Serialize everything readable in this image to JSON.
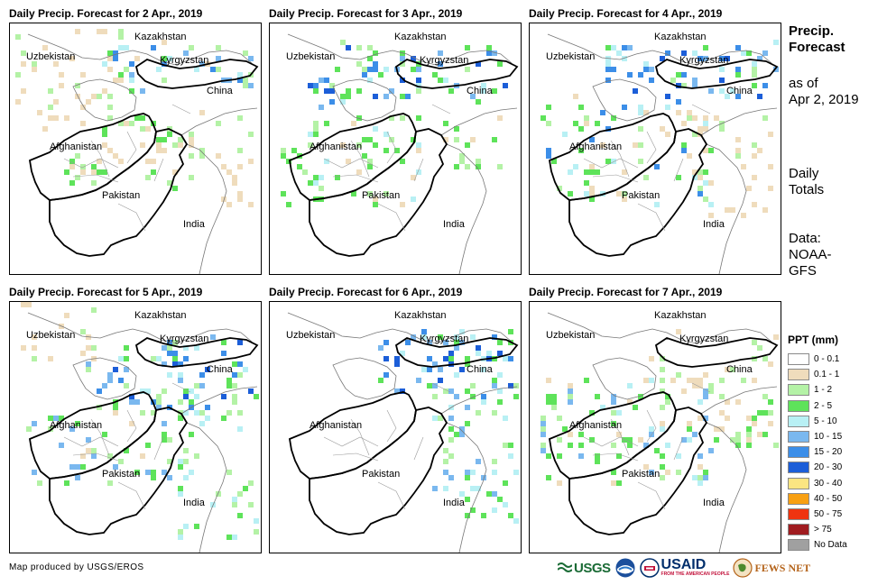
{
  "panels": [
    {
      "title": "Daily Precip. Forecast for 2 Apr., 2019"
    },
    {
      "title": "Daily Precip. Forecast for 3 Apr., 2019"
    },
    {
      "title": "Daily Precip. Forecast for 4 Apr., 2019"
    },
    {
      "title": "Daily Precip. Forecast for 5 Apr., 2019"
    },
    {
      "title": "Daily Precip. Forecast for 6 Apr., 2019"
    },
    {
      "title": "Daily Precip. Forecast for 7 Apr., 2019"
    }
  ],
  "map_labels": {
    "kazakhstan": "Kazakhstan",
    "uzbekistan": "Uzbekistan",
    "kyrgyzstan": "Kyrgyzstan",
    "china": "China",
    "afghanistan": "Afghanistan",
    "pakistan": "Pakistan",
    "india": "India"
  },
  "side": {
    "title_line1": "Precip.",
    "title_line2": "Forecast",
    "asof_line1": "as of",
    "asof_line2": "Apr 2, 2019",
    "daily_line1": "Daily",
    "daily_line2": "Totals",
    "data_line1": "Data:",
    "data_line2": "NOAA-",
    "data_line3": "GFS"
  },
  "legend": {
    "title": "PPT (mm)",
    "items": [
      {
        "label": "0 - 0.1",
        "color": "#ffffff"
      },
      {
        "label": "0.1 - 1",
        "color": "#efdcbc"
      },
      {
        "label": "1 - 2",
        "color": "#b4f2a6"
      },
      {
        "label": "2 - 5",
        "color": "#5ee35a"
      },
      {
        "label": "5 - 10",
        "color": "#b8f0f4"
      },
      {
        "label": "10 - 15",
        "color": "#7ab8ef"
      },
      {
        "label": "15 - 20",
        "color": "#3c8ee8"
      },
      {
        "label": "20 - 30",
        "color": "#1c5ed8"
      },
      {
        "label": "30 - 40",
        "color": "#fbe582"
      },
      {
        "label": "40 - 50",
        "color": "#f8a012"
      },
      {
        "label": "50 - 75",
        "color": "#ef3410"
      },
      {
        "label": "> 75",
        "color": "#a01c20"
      },
      {
        "label": "No Data",
        "color": "#a0a0a0"
      }
    ]
  },
  "credit": "Map produced by USGS/EROS",
  "logos": {
    "usgs": "USGS",
    "usaid": "USAID",
    "usaid_tagline": "FROM THE AMERICAN PEOPLE",
    "fews": "FEWS NET"
  }
}
